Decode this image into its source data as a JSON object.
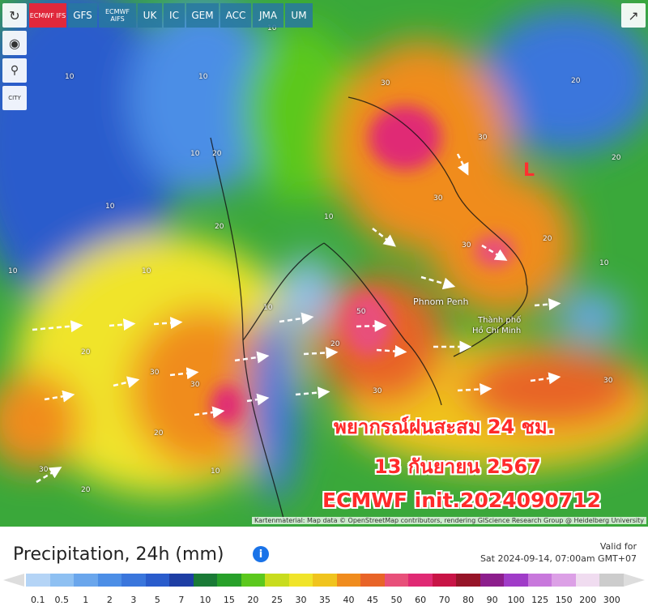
{
  "toolbar": {
    "models": [
      "ECMWF IFS",
      "GFS",
      "ECMWF AIFS",
      "UK",
      "IC",
      "GEM",
      "ACC",
      "JMA",
      "UM"
    ]
  },
  "side_tools": {
    "city": "CITY"
  },
  "map": {
    "contour_labels": [
      "10",
      "10",
      "10",
      "10",
      "20",
      "10",
      "10",
      "20",
      "20",
      "30",
      "30",
      "30",
      "20",
      "20",
      "10",
      "10",
      "30",
      "30",
      "50",
      "20",
      "30",
      "10",
      "10",
      "20",
      "30",
      "30",
      "20",
      "30",
      "20",
      "10"
    ],
    "places": [
      "Phnom Penh",
      "Thành phố",
      "Hồ Chí Minh"
    ],
    "low_marker": "L",
    "overlay": [
      "พยากรณ์ฝนสะสม 24 ชม.",
      "13 กันยายน 2567",
      "ECMWF  init.2024090712"
    ],
    "attribution": "Kartenmaterial: Map data © OpenStreetMap contributors, rendering GIScience Research Group @ Heidelberg University"
  },
  "legend": {
    "title": "Precipitation, 24h (mm)",
    "valid_for": "Valid for",
    "valid_time": "Sat 2024-09-14, 07:00am GMT+07",
    "stops": [
      {
        "label": "0.1",
        "color": "#b4d4f6"
      },
      {
        "label": "0.5",
        "color": "#8ec0f2"
      },
      {
        "label": "1",
        "color": "#6aa6ec"
      },
      {
        "label": "2",
        "color": "#4c8ee6"
      },
      {
        "label": "3",
        "color": "#3a76dc"
      },
      {
        "label": "5",
        "color": "#2a5ccc"
      },
      {
        "label": "7",
        "color": "#1e3ea4"
      },
      {
        "label": "10",
        "color": "#1a7a36"
      },
      {
        "label": "15",
        "color": "#28a02a"
      },
      {
        "label": "20",
        "color": "#5cc81e"
      },
      {
        "label": "25",
        "color": "#c8dc1e"
      },
      {
        "label": "30",
        "color": "#f0e42a"
      },
      {
        "label": "35",
        "color": "#f0c41e"
      },
      {
        "label": "40",
        "color": "#f08c1e"
      },
      {
        "label": "45",
        "color": "#e86428"
      },
      {
        "label": "50",
        "color": "#e8507a"
      },
      {
        "label": "60",
        "color": "#e02a74"
      },
      {
        "label": "70",
        "color": "#c81446"
      },
      {
        "label": "80",
        "color": "#961428"
      },
      {
        "label": "90",
        "color": "#8c1e8c"
      },
      {
        "label": "100",
        "color": "#a03cc8"
      },
      {
        "label": "125",
        "color": "#c878dc"
      },
      {
        "label": "150",
        "color": "#dca0e6"
      },
      {
        "label": "200",
        "color": "#f0dcf0"
      },
      {
        "label": "300",
        "color": "#cccccc"
      }
    ]
  }
}
